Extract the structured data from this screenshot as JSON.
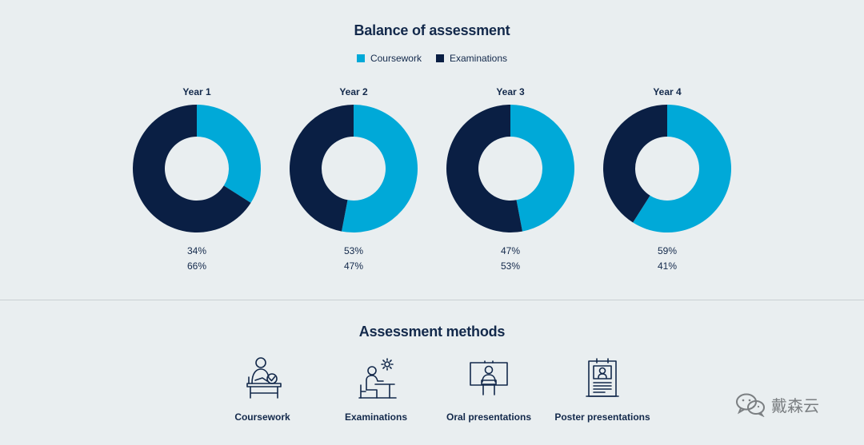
{
  "chart_data": {
    "type": "pie",
    "title": "Balance of assessment",
    "legend": [
      {
        "label": "Coursework",
        "color": "#00a9d8"
      },
      {
        "label": "Examinations",
        "color": "#0a1f44"
      }
    ],
    "legend_placement": "top-center",
    "years": [
      {
        "label": "Year 1",
        "coursework": 34,
        "examinations": 66,
        "coursework_text": "34%",
        "examinations_text": "66%"
      },
      {
        "label": "Year 2",
        "coursework": 53,
        "examinations": 47,
        "coursework_text": "53%",
        "examinations_text": "47%"
      },
      {
        "label": "Year 3",
        "coursework": 47,
        "examinations": 53,
        "coursework_text": "47%",
        "examinations_text": "53%"
      },
      {
        "label": "Year 4",
        "coursework": 59,
        "examinations": 41,
        "coursework_text": "59%",
        "examinations_text": "41%"
      }
    ]
  },
  "methods": {
    "title": "Assessment methods",
    "items": [
      {
        "label": "Coursework",
        "icon": "coursework-icon"
      },
      {
        "label": "Examinations",
        "icon": "examinations-icon"
      },
      {
        "label": "Oral presentations",
        "icon": "oral-presentation-icon"
      },
      {
        "label": "Poster presentations",
        "icon": "poster-presentation-icon"
      }
    ]
  },
  "watermark": {
    "text": "戴森云",
    "icon": "wechat-icon"
  },
  "colors": {
    "coursework": "#00a9d8",
    "examinations": "#0a1f44",
    "background": "#e9eef0"
  }
}
